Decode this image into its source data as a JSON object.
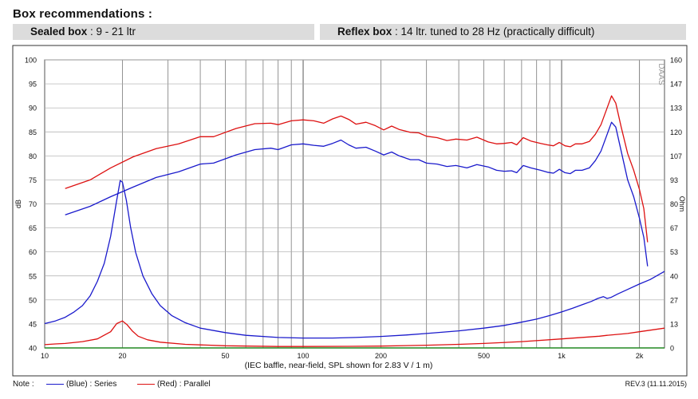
{
  "header": {
    "title": "Box  recommendations :",
    "sealed_label": "Sealed box",
    "sealed_value": " : 9 - 21 ltr",
    "reflex_label": "Reflex box",
    "reflex_value": " : 14 ltr. tuned to 28 Hz (practically difficult)"
  },
  "footer": {
    "note": "Note :",
    "legend_blue": "(Blue) : Series",
    "legend_red": "(Red) : Parallel",
    "revision": "REV.3 (11.11.2015)"
  },
  "chart_data": {
    "type": "line",
    "title": "",
    "xlabel": "(IEC baffle, near-field, SPL shown for 2.83 V / 1 m)",
    "ylabel": "dB",
    "y2label": "Ohm",
    "watermark": "DAAS",
    "xscale": "log",
    "xlim": [
      10,
      2500
    ],
    "ylim": [
      40,
      100
    ],
    "y2lim": [
      0,
      160
    ],
    "grid": true,
    "x_ticks": [
      {
        "v": 10,
        "label": "10"
      },
      {
        "v": 20,
        "label": "20"
      },
      {
        "v": 50,
        "label": "50"
      },
      {
        "v": 100,
        "label": "100"
      },
      {
        "v": 200,
        "label": "200"
      },
      {
        "v": 500,
        "label": "500"
      },
      {
        "v": 1000,
        "label": "1k"
      },
      {
        "v": 2000,
        "label": "2k"
      }
    ],
    "y_ticks": [
      "40",
      "45",
      "50",
      "55",
      "60",
      "65",
      "70",
      "75",
      "80",
      "85",
      "90",
      "95",
      "100"
    ],
    "y2_ticks": [
      "0",
      "13",
      "27",
      "40",
      "53",
      "67",
      "80",
      "93",
      "107",
      "120",
      "133",
      "147",
      "160"
    ],
    "colors": {
      "series": "#1a1acc",
      "parallel": "#dd1111",
      "baseline": "#228822",
      "grid": "#888888"
    },
    "series": [
      {
        "name": "Blue",
        "kind": "spl",
        "axis": "left",
        "points": [
          [
            12,
            67.7
          ],
          [
            15,
            69.5
          ],
          [
            18,
            71.5
          ],
          [
            22,
            73.5
          ],
          [
            27,
            75.5
          ],
          [
            33,
            76.7
          ],
          [
            40,
            78.3
          ],
          [
            45,
            78.5
          ],
          [
            55,
            80.2
          ],
          [
            65,
            81.3
          ],
          [
            75,
            81.6
          ],
          [
            80,
            81.3
          ],
          [
            90,
            82.3
          ],
          [
            100,
            82.5
          ],
          [
            110,
            82.2
          ],
          [
            120,
            82
          ],
          [
            130,
            82.6
          ],
          [
            140,
            83.3
          ],
          [
            150,
            82.3
          ],
          [
            160,
            81.6
          ],
          [
            175,
            81.8
          ],
          [
            190,
            81
          ],
          [
            205,
            80.2
          ],
          [
            220,
            80.8
          ],
          [
            235,
            80
          ],
          [
            260,
            79.2
          ],
          [
            280,
            79.2
          ],
          [
            300,
            78.5
          ],
          [
            330,
            78.3
          ],
          [
            360,
            77.8
          ],
          [
            390,
            78
          ],
          [
            430,
            77.5
          ],
          [
            470,
            78.2
          ],
          [
            520,
            77.7
          ],
          [
            560,
            77
          ],
          [
            600,
            76.8
          ],
          [
            640,
            76.9
          ],
          [
            670,
            76.5
          ],
          [
            710,
            78
          ],
          [
            760,
            77.5
          ],
          [
            830,
            77
          ],
          [
            880,
            76.6
          ],
          [
            930,
            76.4
          ],
          [
            980,
            77.2
          ],
          [
            1030,
            76.5
          ],
          [
            1080,
            76.3
          ],
          [
            1130,
            77
          ],
          [
            1200,
            77
          ],
          [
            1280,
            77.5
          ],
          [
            1350,
            79
          ],
          [
            1420,
            81
          ],
          [
            1500,
            84.5
          ],
          [
            1560,
            87
          ],
          [
            1620,
            86
          ],
          [
            1700,
            81
          ],
          [
            1800,
            75
          ],
          [
            1900,
            71.5
          ],
          [
            2000,
            67
          ],
          [
            2080,
            63
          ],
          [
            2150,
            57
          ]
        ]
      },
      {
        "name": "Red",
        "kind": "spl",
        "axis": "left",
        "points": [
          [
            12,
            73.2
          ],
          [
            15,
            75
          ],
          [
            18,
            77.5
          ],
          [
            22,
            79.8
          ],
          [
            27,
            81.5
          ],
          [
            33,
            82.5
          ],
          [
            40,
            84
          ],
          [
            45,
            84
          ],
          [
            55,
            85.7
          ],
          [
            65,
            86.7
          ],
          [
            75,
            86.8
          ],
          [
            80,
            86.5
          ],
          [
            90,
            87.3
          ],
          [
            100,
            87.5
          ],
          [
            110,
            87.3
          ],
          [
            120,
            86.8
          ],
          [
            130,
            87.7
          ],
          [
            140,
            88.3
          ],
          [
            150,
            87.6
          ],
          [
            160,
            86.6
          ],
          [
            175,
            87
          ],
          [
            190,
            86.3
          ],
          [
            205,
            85.4
          ],
          [
            220,
            86.2
          ],
          [
            235,
            85.5
          ],
          [
            260,
            84.9
          ],
          [
            280,
            84.8
          ],
          [
            300,
            84.1
          ],
          [
            330,
            83.8
          ],
          [
            360,
            83.2
          ],
          [
            390,
            83.5
          ],
          [
            430,
            83.3
          ],
          [
            470,
            83.9
          ],
          [
            520,
            82.9
          ],
          [
            560,
            82.5
          ],
          [
            600,
            82.6
          ],
          [
            640,
            82.8
          ],
          [
            670,
            82.3
          ],
          [
            710,
            83.8
          ],
          [
            760,
            83.1
          ],
          [
            830,
            82.6
          ],
          [
            880,
            82.3
          ],
          [
            930,
            82.1
          ],
          [
            980,
            82.8
          ],
          [
            1030,
            82.1
          ],
          [
            1080,
            81.9
          ],
          [
            1130,
            82.5
          ],
          [
            1200,
            82.5
          ],
          [
            1280,
            83
          ],
          [
            1350,
            84.5
          ],
          [
            1420,
            86.5
          ],
          [
            1500,
            90
          ],
          [
            1560,
            92.5
          ],
          [
            1620,
            91
          ],
          [
            1700,
            86
          ],
          [
            1800,
            80.5
          ],
          [
            1900,
            77
          ],
          [
            2000,
            73
          ],
          [
            2080,
            69
          ],
          [
            2150,
            62
          ]
        ]
      },
      {
        "name": "Blue",
        "kind": "impedance",
        "axis": "right",
        "points": [
          [
            10,
            13.5
          ],
          [
            11,
            15
          ],
          [
            12,
            17
          ],
          [
            13,
            20
          ],
          [
            14,
            23.5
          ],
          [
            15,
            29
          ],
          [
            16,
            37
          ],
          [
            17,
            47
          ],
          [
            18,
            62
          ],
          [
            19,
            82
          ],
          [
            19.6,
            93
          ],
          [
            20,
            92
          ],
          [
            20.7,
            82
          ],
          [
            21.5,
            67
          ],
          [
            22.5,
            53
          ],
          [
            24,
            40
          ],
          [
            26,
            30
          ],
          [
            28,
            23.5
          ],
          [
            31,
            18
          ],
          [
            35,
            14
          ],
          [
            40,
            11
          ],
          [
            50,
            8.5
          ],
          [
            60,
            7
          ],
          [
            80,
            5.8
          ],
          [
            100,
            5.5
          ],
          [
            130,
            5.5
          ],
          [
            160,
            5.8
          ],
          [
            200,
            6.4
          ],
          [
            250,
            7.2
          ],
          [
            300,
            8
          ],
          [
            400,
            9.5
          ],
          [
            500,
            11
          ],
          [
            600,
            12.5
          ],
          [
            700,
            14.3
          ],
          [
            800,
            16
          ],
          [
            900,
            18
          ],
          [
            1000,
            20
          ],
          [
            1100,
            22
          ],
          [
            1200,
            24
          ],
          [
            1300,
            25.8
          ],
          [
            1380,
            27.5
          ],
          [
            1450,
            28.5
          ],
          [
            1500,
            27.5
          ],
          [
            1550,
            28
          ],
          [
            1650,
            30
          ],
          [
            1800,
            32.5
          ],
          [
            2000,
            35.5
          ],
          [
            2200,
            38
          ],
          [
            2500,
            42.5
          ]
        ]
      },
      {
        "name": "Red",
        "kind": "impedance",
        "axis": "right",
        "points": [
          [
            10,
            1.8
          ],
          [
            11,
            2.2
          ],
          [
            12,
            2.5
          ],
          [
            14,
            3.5
          ],
          [
            16,
            5
          ],
          [
            18,
            9
          ],
          [
            19,
            13.5
          ],
          [
            20,
            15
          ],
          [
            20.8,
            13
          ],
          [
            21.8,
            9.5
          ],
          [
            23,
            6.5
          ],
          [
            25,
            4.5
          ],
          [
            28,
            3.2
          ],
          [
            35,
            2
          ],
          [
            50,
            1.2
          ],
          [
            80,
            0.8
          ],
          [
            100,
            0.8
          ],
          [
            150,
            0.9
          ],
          [
            200,
            1
          ],
          [
            300,
            1.5
          ],
          [
            400,
            2
          ],
          [
            500,
            2.5
          ],
          [
            700,
            3.5
          ],
          [
            1000,
            5
          ],
          [
            1400,
            6.5
          ],
          [
            1500,
            7
          ],
          [
            1800,
            8
          ],
          [
            2000,
            9
          ],
          [
            2500,
            11
          ]
        ]
      },
      {
        "name": "",
        "kind": "baseline",
        "axis": "right",
        "points": [
          [
            10,
            0
          ],
          [
            2500,
            0
          ]
        ]
      }
    ]
  }
}
